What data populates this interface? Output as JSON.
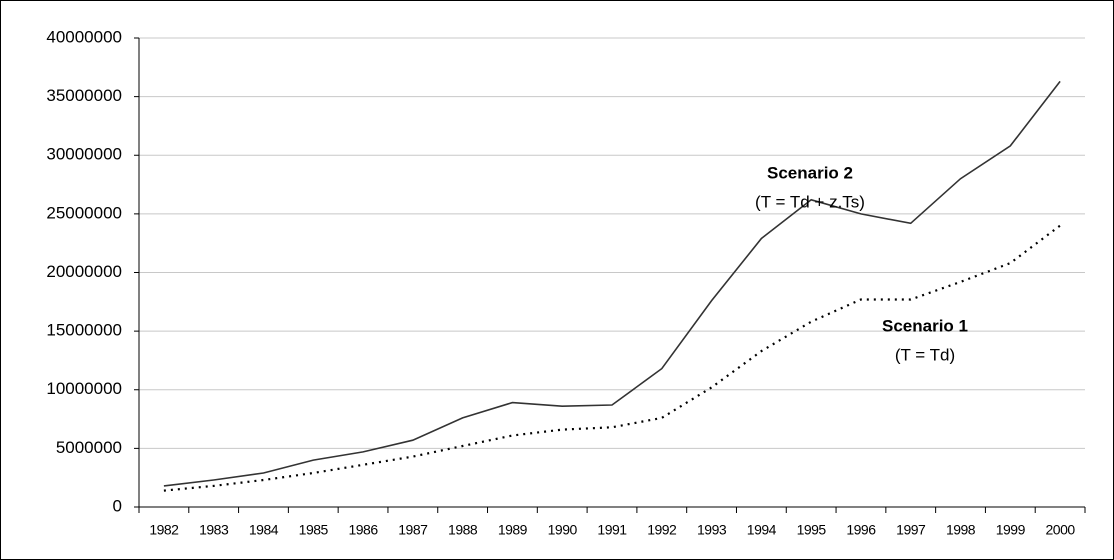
{
  "chart_data": {
    "type": "line",
    "categories": [
      "1982",
      "1983",
      "1984",
      "1985",
      "1986",
      "1987",
      "1988",
      "1989",
      "1990",
      "1991",
      "1992",
      "1993",
      "1994",
      "1995",
      "1996",
      "1997",
      "1998",
      "1999",
      "2000"
    ],
    "series": [
      {
        "name": "Scenario 1",
        "color": "#000000",
        "dash": "dotted",
        "annotation": "(T = Td)",
        "values": [
          1400000,
          1800000,
          2300000,
          2900000,
          3600000,
          4300000,
          5200000,
          6100000,
          6600000,
          6800000,
          7600000,
          10200000,
          13300000,
          15800000,
          17700000,
          17700000,
          19200000,
          20800000,
          24000000
        ]
      },
      {
        "name": "Scenario 2",
        "color": "#333333",
        "dash": "solid",
        "annotation": "(T = Td + z.Ts)",
        "values": [
          1800000,
          2300000,
          2900000,
          4000000,
          4700000,
          5700000,
          7600000,
          8900000,
          8600000,
          8700000,
          11800000,
          17600000,
          22900000,
          26200000,
          25000000,
          24200000,
          28000000,
          30800000,
          36300000
        ]
      }
    ],
    "ylim": [
      0,
      40000000
    ],
    "yticks": [
      0,
      5000000,
      10000000,
      15000000,
      20000000,
      25000000,
      30000000,
      35000000,
      40000000
    ],
    "grid": true
  }
}
